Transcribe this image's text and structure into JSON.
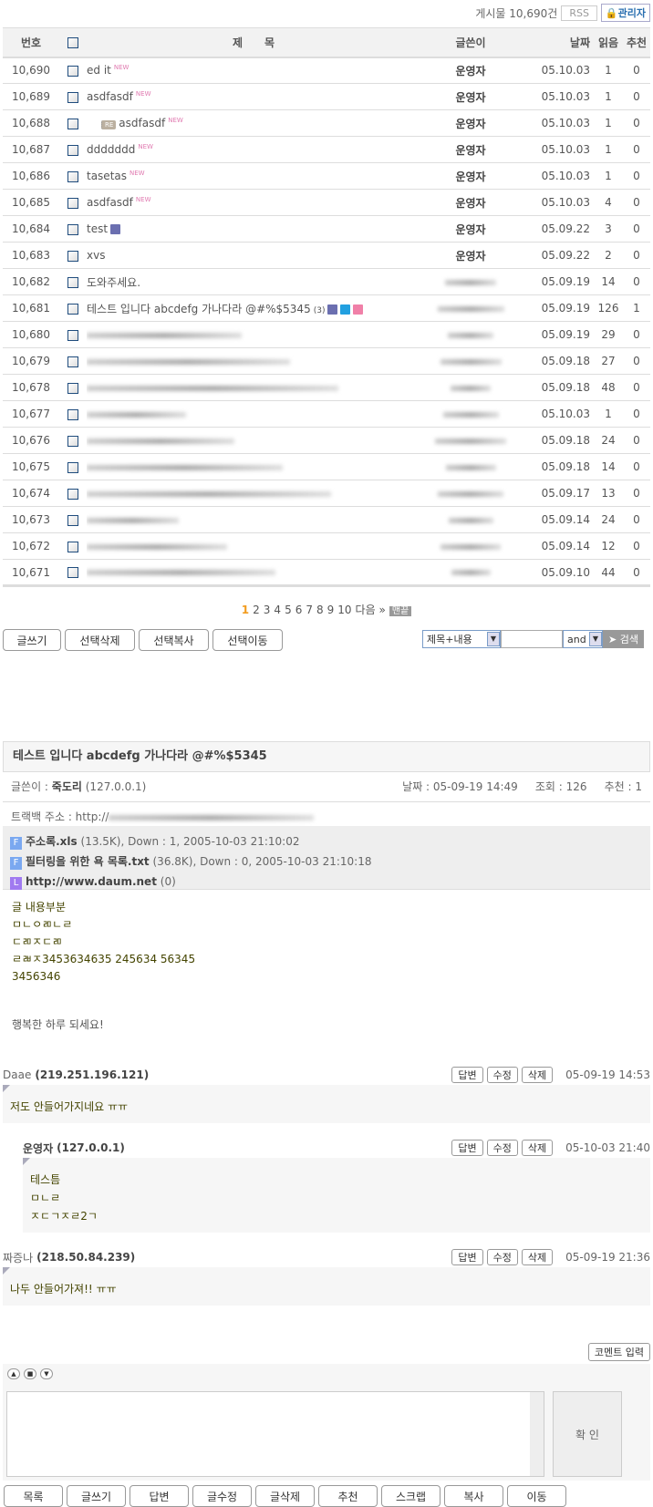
{
  "top": {
    "count": "게시물 10,690건",
    "rss": "RSS",
    "admin": "관리자"
  },
  "header": {
    "no": "번호",
    "title": "제　　목",
    "writer": "글쓴이",
    "date": "날짜",
    "reads": "읽음",
    "rec": "추천"
  },
  "rows": [
    {
      "no": "10,690",
      "title": "ed it",
      "new": true,
      "writer": "운영자",
      "date": "05.10.03",
      "reads": "1",
      "rec": "0"
    },
    {
      "no": "10,689",
      "title": "asdfasdf",
      "new": true,
      "writer": "운영자",
      "date": "05.10.03",
      "reads": "1",
      "rec": "0"
    },
    {
      "no": "10,688",
      "title": "asdfasdf",
      "reply": true,
      "new": true,
      "writer": "운영자",
      "date": "05.10.03",
      "reads": "1",
      "rec": "0"
    },
    {
      "no": "10,687",
      "title": "ddddddd",
      "new": true,
      "writer": "운영자",
      "date": "05.10.03",
      "reads": "1",
      "rec": "0"
    },
    {
      "no": "10,686",
      "title": "tasetas",
      "new": true,
      "writer": "운영자",
      "date": "05.10.03",
      "reads": "1",
      "rec": "0"
    },
    {
      "no": "10,685",
      "title": "asdfasdf",
      "new": true,
      "writer": "운영자",
      "date": "05.10.03",
      "reads": "4",
      "rec": "0"
    },
    {
      "no": "10,684",
      "title": "test",
      "icons": [
        "file"
      ],
      "writer": "운영자",
      "date": "05.09.22",
      "reads": "3",
      "rec": "0"
    },
    {
      "no": "10,683",
      "title": "xvs",
      "writer": "운영자",
      "date": "05.09.22",
      "reads": "2",
      "rec": "0"
    },
    {
      "no": "10,682",
      "title": "도와주세요.",
      "writer": null,
      "date": "05.09.19",
      "reads": "14",
      "rec": "0"
    },
    {
      "no": "10,681",
      "title": "테스트 입니다 abcdefg 가나다라 @#%$5345",
      "comments": "(3)",
      "icons": [
        "file",
        "star",
        "heart"
      ],
      "writer": null,
      "date": "05.09.19",
      "reads": "126",
      "rec": "1"
    },
    {
      "no": "10,680",
      "title": null,
      "writer": null,
      "date": "05.09.19",
      "reads": "29",
      "rec": "0"
    },
    {
      "no": "10,679",
      "title": null,
      "writer": null,
      "date": "05.09.18",
      "reads": "27",
      "rec": "0"
    },
    {
      "no": "10,678",
      "title": null,
      "writer": null,
      "date": "05.09.18",
      "reads": "48",
      "rec": "0"
    },
    {
      "no": "10,677",
      "title": null,
      "writer": null,
      "date": "05.10.03",
      "reads": "1",
      "rec": "0"
    },
    {
      "no": "10,676",
      "title": null,
      "writer": null,
      "date": "05.09.18",
      "reads": "24",
      "rec": "0"
    },
    {
      "no": "10,675",
      "title": null,
      "writer": null,
      "date": "05.09.18",
      "reads": "14",
      "rec": "0"
    },
    {
      "no": "10,674",
      "title": null,
      "writer": null,
      "date": "05.09.17",
      "reads": "13",
      "rec": "0"
    },
    {
      "no": "10,673",
      "title": null,
      "writer": null,
      "date": "05.09.14",
      "reads": "24",
      "rec": "0"
    },
    {
      "no": "10,672",
      "title": null,
      "writer": null,
      "date": "05.09.14",
      "reads": "12",
      "rec": "0"
    },
    {
      "no": "10,671",
      "title": null,
      "writer": null,
      "date": "05.09.10",
      "reads": "44",
      "rec": "0"
    }
  ],
  "pager": {
    "pages": [
      "1",
      "2",
      "3",
      "4",
      "5",
      "6",
      "7",
      "8",
      "9",
      "10"
    ],
    "current": "1",
    "next": "다음 »",
    "end": "맨끝"
  },
  "list_buttons": [
    "글쓰기",
    "선택삭제",
    "선택복사",
    "선택이동"
  ],
  "search": {
    "field": "제목+내용",
    "value": "",
    "op": "and",
    "go": "검색"
  },
  "post": {
    "title": "테스트 입니다 abcdefg 가나다라 @#%$5345",
    "writer_label": "글쓴이 : ",
    "writer": "죽도리",
    "ip": "(127.0.0.1)",
    "date": "날짜 : 05-09-19 14:49",
    "views": "조회 : 126",
    "rec": "추천 : 1",
    "trackback": "트랙백 주소 : http://",
    "files": [
      {
        "icon": "F",
        "name": "주소록.xls",
        "info": "(13.5K), Down : 1, 2005-10-03 21:10:02"
      },
      {
        "icon": "F",
        "name": "필터링을 위한 욕 목록.txt",
        "info": "(36.8K), Down : 0, 2005-10-03 21:10:18"
      },
      {
        "icon": "L",
        "name": "http://www.daum.net",
        "info": "(0)"
      }
    ],
    "body": [
      "글 내용부분",
      "ㅁㄴㅇㄻㄴㄹ",
      "ㄷㄻㅈㄷㄻ",
      "ㄹㄼㅈ3453634635 245634 56345",
      "3456346"
    ],
    "sign": "행복한 하루 되세요!"
  },
  "comments": [
    {
      "name": "Daae",
      "ip": "(219.251.196.121)",
      "date": "05-09-19 14:53",
      "text": [
        "저도 안들어가지네요 ㅠㅠ"
      ],
      "indent": false
    },
    {
      "name": "운영자",
      "ip": "(127.0.0.1)",
      "date": "05-10-03 21:40",
      "text": [
        "테스틈",
        "ㅁㄴㄹ",
        "ㅈㄷㄱㅈㄹ2ㄱ"
      ],
      "indent": true
    },
    {
      "name": "짜증나",
      "ip": "(218.50.84.239)",
      "date": "05-09-19 21:36",
      "text": [
        "나두 안들어가져!! ㅠㅠ"
      ],
      "indent": false
    }
  ],
  "comment_actions": [
    "답변",
    "수정",
    "삭제"
  ],
  "comment_input": {
    "toggle": "코멘트 입력",
    "submit": "확 인",
    "value": ""
  },
  "bottom_buttons": [
    "목록",
    "글쓰기",
    "답변",
    "글수정",
    "글삭제",
    "추천",
    "스크랩",
    "복사",
    "이동"
  ],
  "colors": {
    "accent": "#f29c1f",
    "border": "#dddddd",
    "header_bg": "#f2f2f2",
    "body_text": "#444400"
  }
}
